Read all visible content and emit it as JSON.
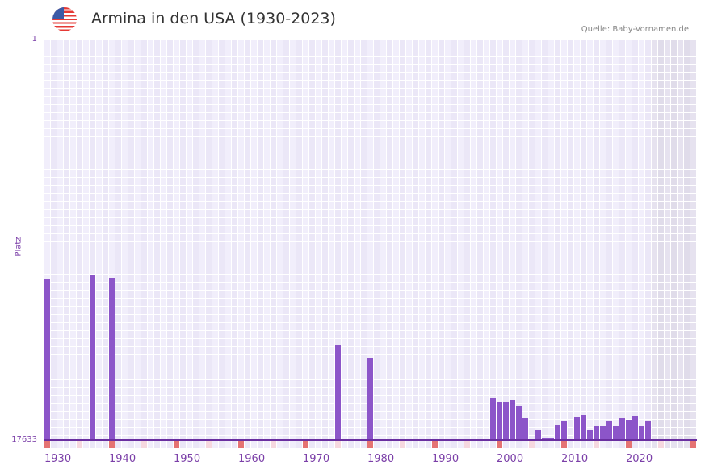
{
  "header": {
    "title": "Armina in den USA (1930-2023)",
    "source": "Quelle: Baby-Vornamen.de",
    "flag_icon": "us-flag-icon"
  },
  "colors": {
    "bar": "#8c55c9",
    "axis": "#6a2fa0",
    "label": "#7b3fa8",
    "grid_a": "#f1eefb",
    "grid_b": "#ebe7f7",
    "future_a": "#e6e2ef",
    "future_b": "#e0dcea",
    "marker_decade": "#e57373",
    "marker_half": "#f6d8df"
  },
  "chart_data": {
    "type": "bar",
    "title": "Armina in den USA (1930-2023)",
    "xlabel": "",
    "ylabel": "Platz",
    "y_inverted": true,
    "ylim": [
      1,
      17633
    ],
    "y_ticks": [
      "1",
      "17633"
    ],
    "x_range": [
      1930,
      2030
    ],
    "x_ticks": [
      "1930",
      "1940",
      "1950",
      "1960",
      "1970",
      "1980",
      "1990",
      "2000",
      "2010",
      "2020"
    ],
    "grid": true,
    "future_shading_from": 2024,
    "categories": [
      1930,
      1937,
      1940,
      1975,
      1980,
      1999,
      2000,
      2001,
      2002,
      2003,
      2004,
      2006,
      2007,
      2008,
      2009,
      2010,
      2012,
      2013,
      2014,
      2015,
      2016,
      2017,
      2018,
      2019,
      2020,
      2021,
      2022,
      2023
    ],
    "values": [
      10544,
      10366,
      10473,
      13429,
      13999,
      15780,
      15958,
      15958,
      15851,
      16136,
      16670,
      17205,
      17525,
      17525,
      16955,
      16777,
      16599,
      16528,
      17169,
      17027,
      17027,
      16777,
      17027,
      16670,
      16741,
      16563,
      16991,
      16777
    ]
  }
}
